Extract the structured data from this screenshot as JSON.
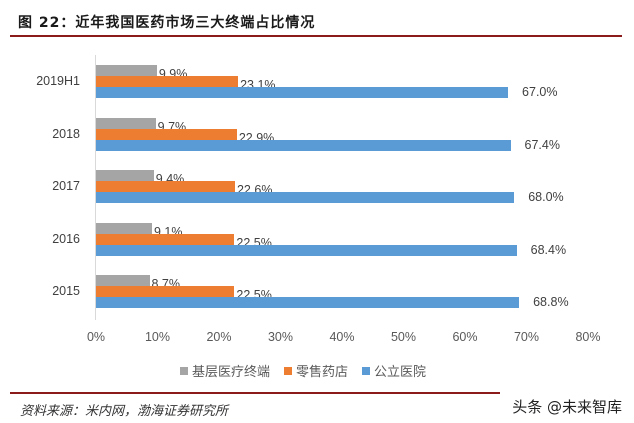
{
  "figure": {
    "title": "图 22：近年我国医药市场三大终端占比情况",
    "source": "资料来源：米内网，渤海证券研究所",
    "watermark": "头条 @未来智库"
  },
  "colors": {
    "gray": "#a5a5a5",
    "orange": "#ed7d31",
    "blue": "#5b9bd5",
    "rule": "#8b1a1a"
  },
  "chart_data": {
    "type": "bar",
    "orientation": "horizontal",
    "title": "近年我国医药市场三大终端占比情况",
    "categories": [
      "2019H1",
      "2018",
      "2017",
      "2016",
      "2015"
    ],
    "series": [
      {
        "name": "基层医疗终端",
        "color": "#a5a5a5",
        "values": [
          9.9,
          9.7,
          9.4,
          9.1,
          8.7
        ],
        "labels": [
          "9.9%",
          "9.7%",
          "9.4%",
          "9.1%",
          "8.7%"
        ]
      },
      {
        "name": "零售药店",
        "color": "#ed7d31",
        "values": [
          23.1,
          22.9,
          22.6,
          22.5,
          22.5
        ],
        "labels": [
          "23.1%",
          "22.9%",
          "22.6%",
          "22.5%",
          "22.5%"
        ]
      },
      {
        "name": "公立医院",
        "color": "#5b9bd5",
        "values": [
          67.0,
          67.4,
          68.0,
          68.4,
          68.8
        ],
        "labels": [
          "67.0%",
          "67.4%",
          "68.0%",
          "68.4%",
          "68.8%"
        ]
      }
    ],
    "xlabel": "",
    "ylabel": "",
    "xlim": [
      0,
      80
    ],
    "x_ticks": [
      "0%",
      "10%",
      "20%",
      "30%",
      "40%",
      "50%",
      "60%",
      "70%",
      "80%"
    ],
    "grid": false,
    "legend_position": "bottom"
  }
}
